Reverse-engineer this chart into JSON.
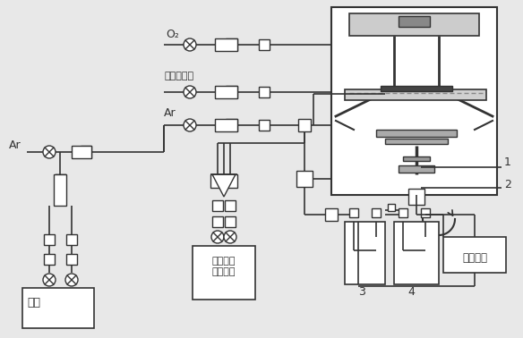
{
  "title": "",
  "bg_color": "#f0f0f0",
  "line_color": "#333333",
  "box_color": "#333333",
  "labels": {
    "O2": "O₂",
    "gas_dopant": "气态据杂源",
    "Ar": "Ar",
    "Ar2": "Ar",
    "organic_dopant": "有机或液\n态据杂源",
    "source": "钒源",
    "tail_gas": "尾气处理",
    "label1": "1",
    "label2": "2",
    "label3": "3",
    "label4": "4"
  },
  "fig_width": 5.84,
  "fig_height": 3.78
}
